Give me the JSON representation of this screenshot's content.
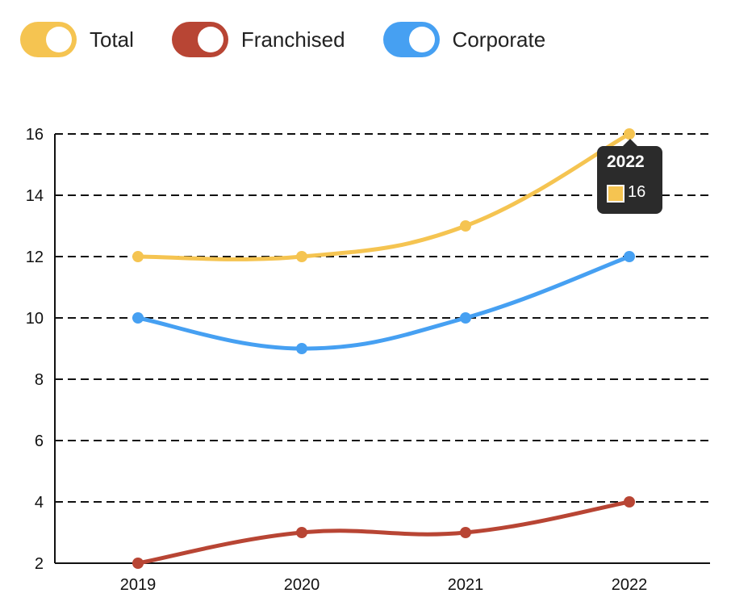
{
  "legend": {
    "items": [
      {
        "label": "Total",
        "color": "#F5C451"
      },
      {
        "label": "Franchised",
        "color": "#B84534"
      },
      {
        "label": "Corporate",
        "color": "#46A0F2"
      }
    ]
  },
  "tooltip": {
    "title": "2022",
    "value": "16",
    "color": "#F5C451"
  },
  "chart_data": {
    "type": "line",
    "title": "",
    "xlabel": "",
    "ylabel": "",
    "categories": [
      "2019",
      "2020",
      "2021",
      "2022"
    ],
    "series": [
      {
        "name": "Total",
        "values": [
          12,
          12,
          13,
          16
        ],
        "color": "#F5C451"
      },
      {
        "name": "Franchised",
        "values": [
          2,
          3,
          3,
          4
        ],
        "color": "#B84534"
      },
      {
        "name": "Corporate",
        "values": [
          10,
          9,
          10,
          12
        ],
        "color": "#46A0F2"
      }
    ],
    "ylim": [
      2,
      16
    ],
    "yticks": [
      2,
      4,
      6,
      8,
      10,
      12,
      14,
      16
    ],
    "grid": true,
    "grid_style": "dashed",
    "smooth": true,
    "legend_position": "top-left"
  }
}
